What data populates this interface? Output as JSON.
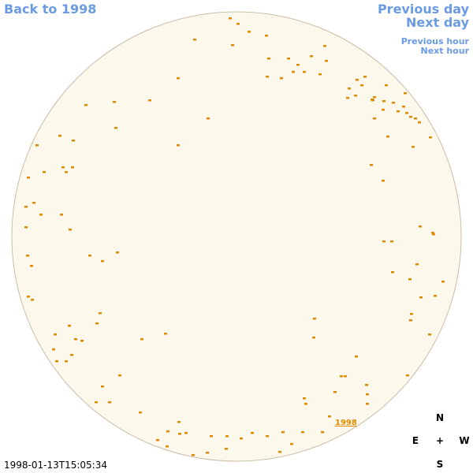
{
  "navigation": {
    "back": "Back to 1998",
    "previous_day": "Previous day",
    "next_day": "Next day",
    "previous_hour": "Previous hour",
    "next_hour": "Next hour"
  },
  "disk": {
    "label": "1998"
  },
  "compass": {
    "north": "N",
    "east": "E",
    "center": "+",
    "west": "W",
    "south": "S"
  },
  "timestamp": "1998-01-13T15:05:34"
}
